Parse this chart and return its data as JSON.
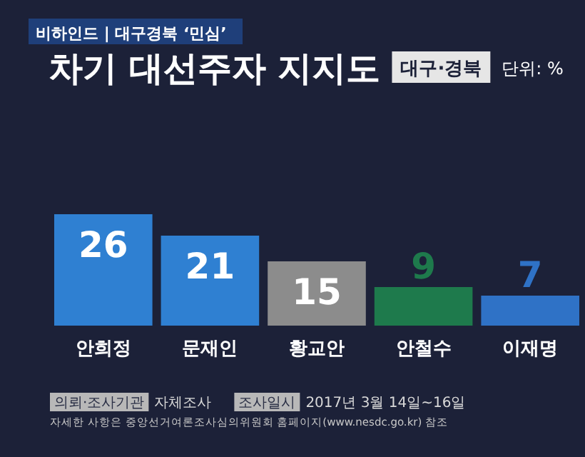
{
  "chart_data": {
    "type": "bar",
    "title": "차기 대선주자 지지도",
    "subtitle": "대구·경북",
    "annotations": [
      "비하인드 | 대구경북 ‘민심’",
      "단위: %",
      "의뢰·조사기관",
      "자체조사",
      "조사일시",
      "2017년 3월 14일~16일",
      "자세한 사항은 중앙선거여론조사심의위원회 홈페이지(www.nesdc.go.kr) 참조"
    ],
    "categories": [
      "안희정",
      "문재인",
      "황교안",
      "안철수",
      "이재명"
    ],
    "values": [
      26,
      21,
      15,
      9,
      7
    ],
    "colors": [
      "#2f80d2",
      "#2f80d2",
      "#8c8c8c",
      "#1e7a4c",
      "#2f72c6"
    ],
    "data_labels": true
  }
}
